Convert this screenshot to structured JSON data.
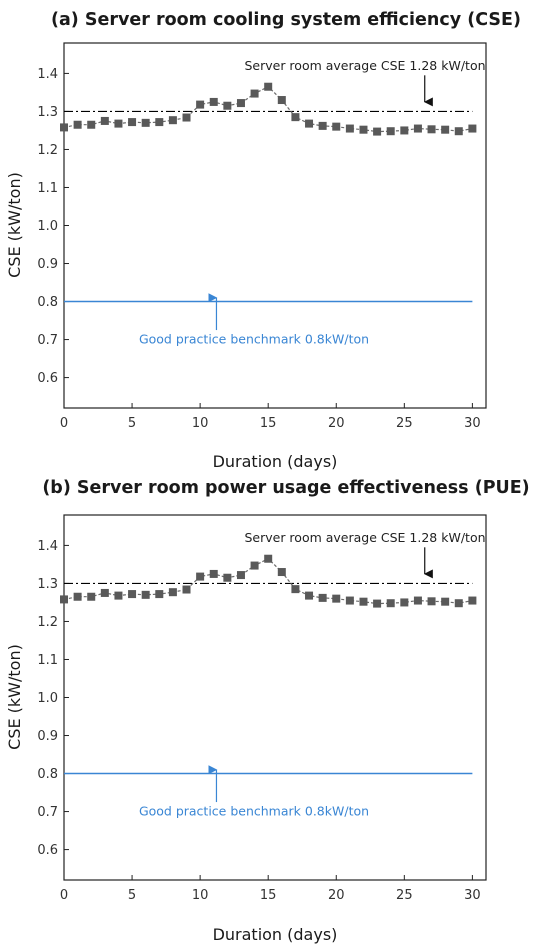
{
  "chart_data": [
    {
      "type": "line",
      "title": "(a) Server room cooling system efficiency (CSE)",
      "xlabel": "Duration (days)",
      "ylabel": "CSE (kW/ton)",
      "xlim": [
        0,
        31
      ],
      "ylim": [
        0.52,
        1.48
      ],
      "xticks": [
        0,
        5,
        10,
        15,
        20,
        25,
        30
      ],
      "yticks": [
        0.6,
        0.7,
        0.8,
        0.9,
        1.0,
        1.1,
        1.2,
        1.3,
        1.4
      ],
      "grid": false,
      "series": [
        {
          "x": [
            0,
            1,
            2,
            3,
            4,
            5,
            6,
            7,
            8,
            9,
            10,
            11,
            12,
            13,
            14,
            15,
            16,
            17,
            18,
            19,
            20,
            21,
            22,
            23,
            24,
            25,
            26,
            27,
            28,
            29,
            30
          ],
          "values": [
            1.258,
            1.265,
            1.265,
            1.275,
            1.268,
            1.272,
            1.27,
            1.272,
            1.277,
            1.284,
            1.318,
            1.325,
            1.315,
            1.322,
            1.347,
            1.365,
            1.33,
            1.285,
            1.268,
            1.262,
            1.26,
            1.255,
            1.252,
            1.247,
            1.248,
            1.25,
            1.255,
            1.253,
            1.252,
            1.248,
            1.255
          ],
          "color": "#595959"
        }
      ],
      "reference_lines": [
        {
          "y": 1.3,
          "color": "#000000",
          "style": "dash-dot"
        },
        {
          "y": 0.8,
          "color": "#3a86d4",
          "style": "solid"
        }
      ],
      "annotations": [
        {
          "text": "Server room average CSE 1.28 kW/ton",
          "color": "#222222",
          "arrow_x": 26.5,
          "arrow_from_y": 1.395,
          "arrow_to_y": 1.325
        },
        {
          "text": "Good practice benchmark 0.8kW/ton",
          "color": "#3a86d4",
          "arrow_x": 11.2,
          "arrow_from_y": 0.725,
          "arrow_to_y": 0.81
        }
      ]
    },
    {
      "type": "line",
      "title": "(b) Server room power usage effectiveness (PUE)",
      "xlabel": "Duration (days)",
      "ylabel": "CSE (kW/ton)",
      "xlim": [
        0,
        31
      ],
      "ylim": [
        0.52,
        1.48
      ],
      "xticks": [
        0,
        5,
        10,
        15,
        20,
        25,
        30
      ],
      "yticks": [
        0.6,
        0.7,
        0.8,
        0.9,
        1.0,
        1.1,
        1.2,
        1.3,
        1.4
      ],
      "grid": false,
      "series": [
        {
          "x": [
            0,
            1,
            2,
            3,
            4,
            5,
            6,
            7,
            8,
            9,
            10,
            11,
            12,
            13,
            14,
            15,
            16,
            17,
            18,
            19,
            20,
            21,
            22,
            23,
            24,
            25,
            26,
            27,
            28,
            29,
            30
          ],
          "values": [
            1.258,
            1.265,
            1.265,
            1.275,
            1.268,
            1.272,
            1.27,
            1.272,
            1.277,
            1.284,
            1.318,
            1.325,
            1.315,
            1.322,
            1.347,
            1.365,
            1.33,
            1.285,
            1.268,
            1.262,
            1.26,
            1.255,
            1.252,
            1.247,
            1.248,
            1.25,
            1.255,
            1.253,
            1.252,
            1.248,
            1.255
          ],
          "color": "#595959"
        }
      ],
      "reference_lines": [
        {
          "y": 1.3,
          "color": "#000000",
          "style": "dash-dot"
        },
        {
          "y": 0.8,
          "color": "#3a86d4",
          "style": "solid"
        }
      ],
      "annotations": [
        {
          "text": "Server room average CSE 1.28 kW/ton",
          "color": "#222222",
          "arrow_x": 26.5,
          "arrow_from_y": 1.395,
          "arrow_to_y": 1.325
        },
        {
          "text": "Good practice benchmark 0.8kW/ton",
          "color": "#3a86d4",
          "arrow_x": 11.2,
          "arrow_from_y": 0.725,
          "arrow_to_y": 0.81
        }
      ]
    }
  ]
}
